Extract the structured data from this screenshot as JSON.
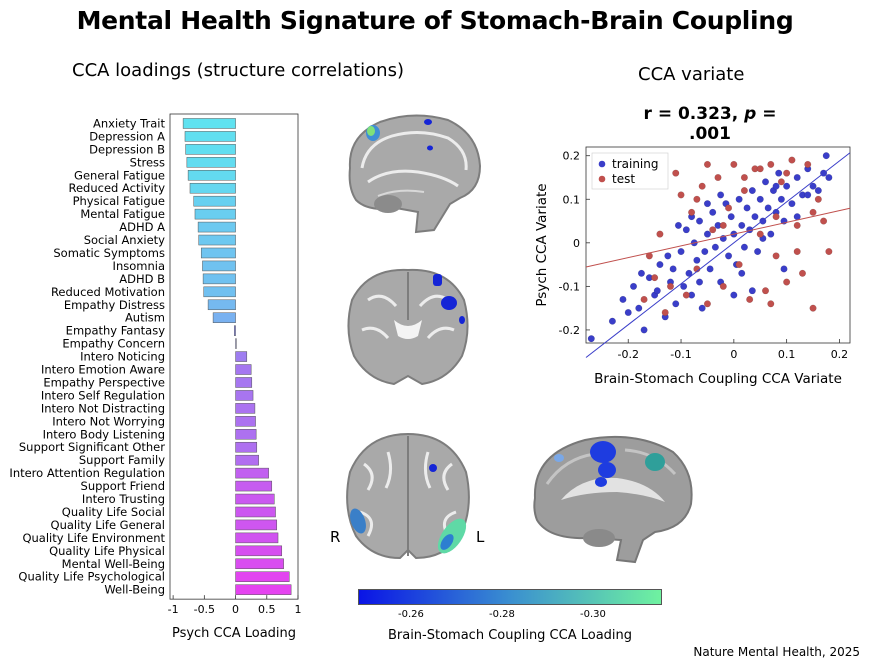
{
  "title": "Mental Health Signature of Stomach-Brain Coupling",
  "loadings_title": "CCA loadings (structure correlations)",
  "variate_title": "CCA variate",
  "stat": {
    "r_text": "r = 0.323, ",
    "p_label": "p",
    "p_text": " = .001"
  },
  "citation": "Nature Mental Health, 2025",
  "hemisphere": {
    "right": "R",
    "left": "L"
  },
  "colorbar": {
    "label": "Brain-Stomach Coupling CCA Loading",
    "ticks": [
      "-0.26",
      "-0.28",
      "-0.30"
    ],
    "colors": [
      "#0a14e6",
      "#3a8fd0",
      "#6ff2a0"
    ]
  },
  "chart_data": [
    {
      "type": "bar",
      "orientation": "horizontal",
      "title": "CCA loadings (structure correlations)",
      "xlabel": "Psych CCA Loading",
      "xlim": [
        -1.05,
        1.0
      ],
      "xticks": [
        "-1",
        "-0.5",
        "0",
        "0.5",
        "1"
      ],
      "categories": [
        "Anxiety Trait",
        "Depression A",
        "Depression B",
        "Stress",
        "General Fatigue",
        "Reduced Activity",
        "Physical Fatigue",
        "Mental Fatigue",
        "ADHD A",
        "Social Anxiety",
        "Somatic Symptoms",
        "Insomnia",
        "ADHD B",
        "Reduced Motivation",
        "Empathy Distress",
        "Autism",
        "Empathy Fantasy",
        "Empathy Concern",
        "Intero Noticing",
        "Intero Emotion Aware",
        "Empathy Perspective",
        "Intero Self Regulation",
        "Intero Not Distracting",
        "Intero Not Worrying",
        "Intero Body Listening",
        "Support Significant Other",
        "Support Family",
        "Intero Attention Regulation",
        "Support Friend",
        "Intero Trusting",
        "Quality Life Social",
        "Quality Life General",
        "Quality Life Environment",
        "Quality Life Physical",
        "Mental Well-Being",
        "Quality Life Psychological",
        "Well-Being"
      ],
      "values": [
        -0.84,
        -0.81,
        -0.8,
        -0.78,
        -0.76,
        -0.73,
        -0.67,
        -0.65,
        -0.6,
        -0.59,
        -0.55,
        -0.53,
        -0.52,
        -0.51,
        -0.44,
        -0.36,
        -0.02,
        0.0,
        0.18,
        0.25,
        0.26,
        0.28,
        0.31,
        0.32,
        0.33,
        0.34,
        0.37,
        0.53,
        0.58,
        0.62,
        0.64,
        0.66,
        0.68,
        0.74,
        0.77,
        0.86,
        0.89
      ],
      "color_scale": [
        "#5ce8f0",
        "#8c8cf0",
        "#e642f0"
      ]
    },
    {
      "type": "scatter",
      "title": "CCA variate",
      "xlabel": "Brain-Stomach Coupling CCA Variate",
      "ylabel": "Psych CCA Variate",
      "xlim": [
        -0.28,
        0.22
      ],
      "ylim": [
        -0.23,
        0.22
      ],
      "xticks": [
        "-0.2",
        "-0.1",
        "0",
        "0.1",
        "0.2"
      ],
      "yticks": [
        "-0.2",
        "-0.1",
        "0",
        "0.1",
        "0.2"
      ],
      "legend_position": "top-left",
      "series": [
        {
          "name": "training",
          "color": "#3a3ec9",
          "points": [
            [
              -0.27,
              -0.22
            ],
            [
              -0.23,
              -0.18
            ],
            [
              -0.21,
              -0.13
            ],
            [
              -0.2,
              -0.16
            ],
            [
              -0.19,
              -0.1
            ],
            [
              -0.18,
              -0.15
            ],
            [
              -0.17,
              -0.2
            ],
            [
              -0.16,
              -0.08
            ],
            [
              -0.15,
              -0.12
            ],
            [
              -0.14,
              -0.05
            ],
            [
              -0.13,
              -0.17
            ],
            [
              -0.12,
              -0.09
            ],
            [
              -0.115,
              -0.06
            ],
            [
              -0.11,
              -0.14
            ],
            [
              -0.1,
              -0.02
            ],
            [
              -0.095,
              -0.1
            ],
            [
              -0.09,
              0.03
            ],
            [
              -0.085,
              -0.07
            ],
            [
              -0.08,
              -0.12
            ],
            [
              -0.075,
              0.0
            ],
            [
              -0.07,
              -0.04
            ],
            [
              -0.065,
              0.05
            ],
            [
              -0.06,
              -0.15
            ],
            [
              -0.055,
              -0.02
            ],
            [
              -0.05,
              0.02
            ],
            [
              -0.045,
              -0.06
            ],
            [
              -0.04,
              0.07
            ],
            [
              -0.035,
              -0.01
            ],
            [
              -0.03,
              0.04
            ],
            [
              -0.025,
              -0.09
            ],
            [
              -0.02,
              0.01
            ],
            [
              -0.015,
              0.09
            ],
            [
              -0.01,
              -0.03
            ],
            [
              -0.005,
              0.06
            ],
            [
              0.0,
              0.02
            ],
            [
              0.005,
              -0.05
            ],
            [
              0.01,
              0.1
            ],
            [
              0.015,
              0.04
            ],
            [
              0.02,
              -0.01
            ],
            [
              0.025,
              0.08
            ],
            [
              0.03,
              0.03
            ],
            [
              0.035,
              0.12
            ],
            [
              0.04,
              0.06
            ],
            [
              0.045,
              -0.02
            ],
            [
              0.05,
              0.1
            ],
            [
              0.055,
              0.05
            ],
            [
              0.06,
              0.14
            ],
            [
              0.065,
              0.08
            ],
            [
              0.07,
              0.02
            ],
            [
              0.075,
              0.12
            ],
            [
              0.08,
              0.07
            ],
            [
              0.085,
              0.16
            ],
            [
              0.09,
              0.1
            ],
            [
              0.095,
              0.05
            ],
            [
              0.1,
              0.13
            ],
            [
              0.11,
              0.09
            ],
            [
              0.12,
              0.15
            ],
            [
              0.13,
              0.11
            ],
            [
              0.14,
              0.17
            ],
            [
              0.15,
              0.13
            ],
            [
              0.16,
              0.12
            ],
            [
              0.17,
              0.16
            ],
            [
              0.175,
              0.2
            ],
            [
              0.18,
              0.15
            ],
            [
              -0.125,
              -0.03
            ],
            [
              -0.105,
              0.04
            ],
            [
              -0.065,
              -0.09
            ],
            [
              -0.025,
              0.11
            ],
            [
              0.015,
              -0.07
            ],
            [
              0.055,
              0.01
            ],
            [
              0.095,
              -0.06
            ],
            [
              0.035,
              -0.11
            ],
            [
              -0.145,
              -0.11
            ],
            [
              -0.175,
              -0.07
            ],
            [
              -0.05,
              0.09
            ],
            [
              0.12,
              0.06
            ],
            [
              0.14,
              0.11
            ],
            [
              0.08,
              0.13
            ],
            [
              0.0,
              -0.12
            ],
            [
              -0.08,
              0.06
            ]
          ]
        },
        {
          "name": "test",
          "color": "#c0504d",
          "points": [
            [
              -0.16,
              -0.03
            ],
            [
              -0.14,
              0.02
            ],
            [
              -0.12,
              -0.1
            ],
            [
              -0.1,
              0.11
            ],
            [
              -0.09,
              -0.12
            ],
            [
              -0.08,
              0.07
            ],
            [
              -0.07,
              -0.06
            ],
            [
              -0.06,
              0.13
            ],
            [
              -0.05,
              -0.14
            ],
            [
              -0.04,
              0.03
            ],
            [
              -0.03,
              0.15
            ],
            [
              -0.02,
              -0.1
            ],
            [
              -0.01,
              0.08
            ],
            [
              0.0,
              0.18
            ],
            [
              0.01,
              -0.05
            ],
            [
              0.02,
              0.12
            ],
            [
              0.03,
              -0.13
            ],
            [
              0.04,
              0.17
            ],
            [
              0.05,
              0.02
            ],
            [
              0.06,
              -0.11
            ],
            [
              0.07,
              0.18
            ],
            [
              0.08,
              -0.03
            ],
            [
              0.09,
              0.14
            ],
            [
              0.1,
              -0.09
            ],
            [
              0.11,
              0.19
            ],
            [
              0.12,
              0.04
            ],
            [
              0.13,
              -0.07
            ],
            [
              0.14,
              0.18
            ],
            [
              0.15,
              -0.15
            ],
            [
              0.16,
              0.1
            ],
            [
              0.17,
              0.05
            ],
            [
              0.18,
              -0.02
            ],
            [
              -0.11,
              0.16
            ],
            [
              -0.13,
              -0.16
            ],
            [
              0.05,
              0.17
            ],
            [
              -0.05,
              0.18
            ],
            [
              0.08,
              0.06
            ],
            [
              0.15,
              0.07
            ],
            [
              -0.02,
              0.04
            ],
            [
              0.02,
              0.15
            ],
            [
              0.1,
              0.16
            ],
            [
              -0.07,
              0.1
            ],
            [
              0.07,
              -0.14
            ],
            [
              -0.15,
              -0.08
            ],
            [
              -0.17,
              -0.13
            ],
            [
              0.12,
              -0.02
            ]
          ]
        }
      ],
      "fit_lines": [
        {
          "series": "training",
          "intercept": 0.0,
          "slope": 0.94
        },
        {
          "series": "test",
          "intercept": 0.02,
          "slope": 0.27
        }
      ]
    }
  ]
}
